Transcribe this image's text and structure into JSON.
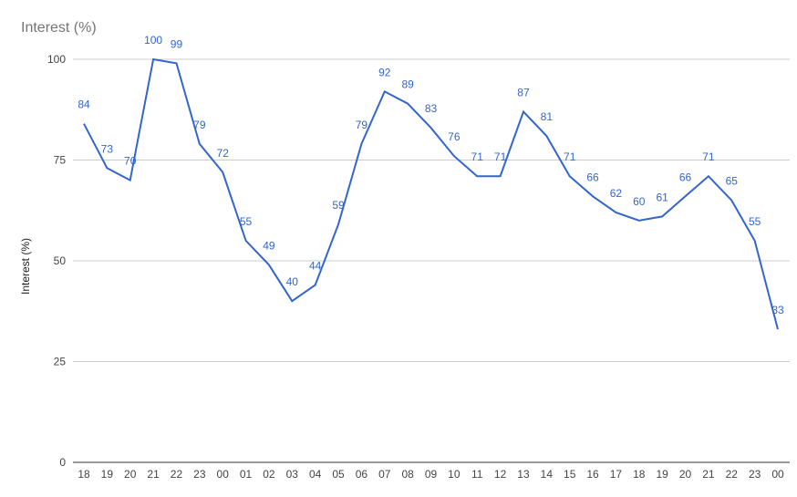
{
  "chart_data": {
    "type": "line",
    "title": "Interest (%)",
    "ylabel": "Interest (%)",
    "xlabel": "",
    "ylim": [
      0,
      100
    ],
    "yticks": [
      0,
      25,
      50,
      75,
      100
    ],
    "grid": true,
    "color": "#3366cc",
    "categories": [
      "18",
      "19",
      "20",
      "21",
      "22",
      "23",
      "00",
      "01",
      "02",
      "03",
      "04",
      "05",
      "06",
      "07",
      "08",
      "09",
      "10",
      "11",
      "12",
      "13",
      "14",
      "15",
      "16",
      "17",
      "18",
      "19",
      "20",
      "21",
      "22",
      "23",
      "00"
    ],
    "values": [
      84,
      73,
      70,
      100,
      99,
      79,
      72,
      55,
      49,
      40,
      44,
      59,
      79,
      92,
      89,
      83,
      76,
      71,
      71,
      87,
      81,
      71,
      66,
      62,
      60,
      61,
      66,
      71,
      65,
      55,
      33
    ]
  }
}
